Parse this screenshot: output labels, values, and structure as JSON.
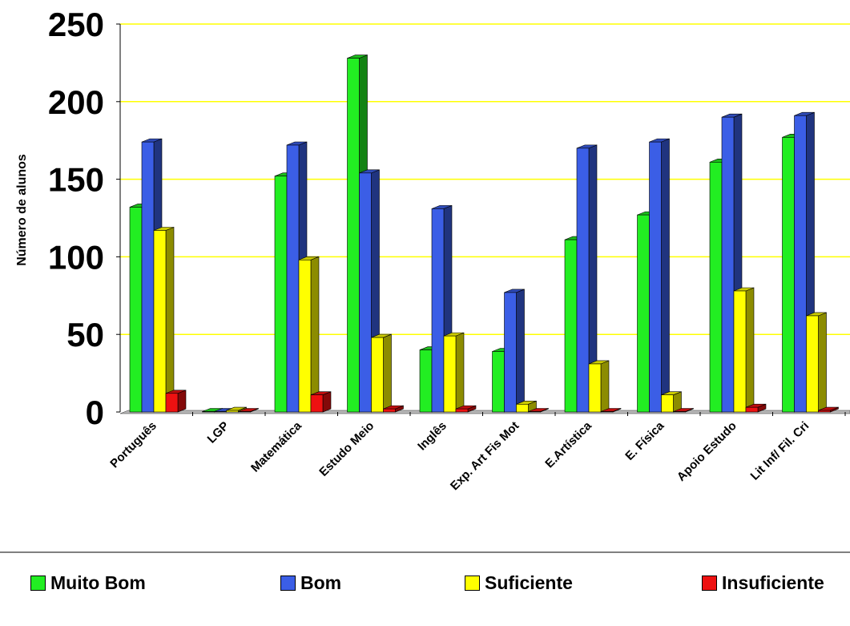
{
  "chart_data": {
    "type": "bar",
    "title": "",
    "xlabel": "",
    "ylabel": "Número de alunos",
    "ylim": [
      0,
      250
    ],
    "yticks": [
      0,
      50,
      100,
      150,
      200,
      250
    ],
    "grid": true,
    "legend_position": "bottom",
    "categories": [
      "Português",
      "LGP",
      "Matemática",
      "Estudo Meio",
      "Inglês",
      "Exp. Art Fis Mot",
      "E.Artística",
      "E. Física",
      "Apoio Estudo",
      "Lit Inf/ Fil. Cri"
    ],
    "series": [
      {
        "name": "Muito Bom",
        "color": "#22ee22",
        "values": [
          132,
          0,
          152,
          228,
          40,
          39,
          111,
          127,
          161,
          177
        ]
      },
      {
        "name": "Bom",
        "color": "#3b5ee6",
        "values": [
          174,
          0,
          172,
          154,
          131,
          77,
          170,
          174,
          190,
          191
        ]
      },
      {
        "name": "Suficiente",
        "color": "#ffff00",
        "values": [
          117,
          1,
          98,
          48,
          49,
          5,
          31,
          11,
          78,
          62
        ]
      },
      {
        "name": "Insuficiente",
        "color": "#ee1111",
        "values": [
          12,
          0,
          11,
          2,
          2,
          0,
          0,
          0,
          3,
          1
        ]
      }
    ]
  }
}
